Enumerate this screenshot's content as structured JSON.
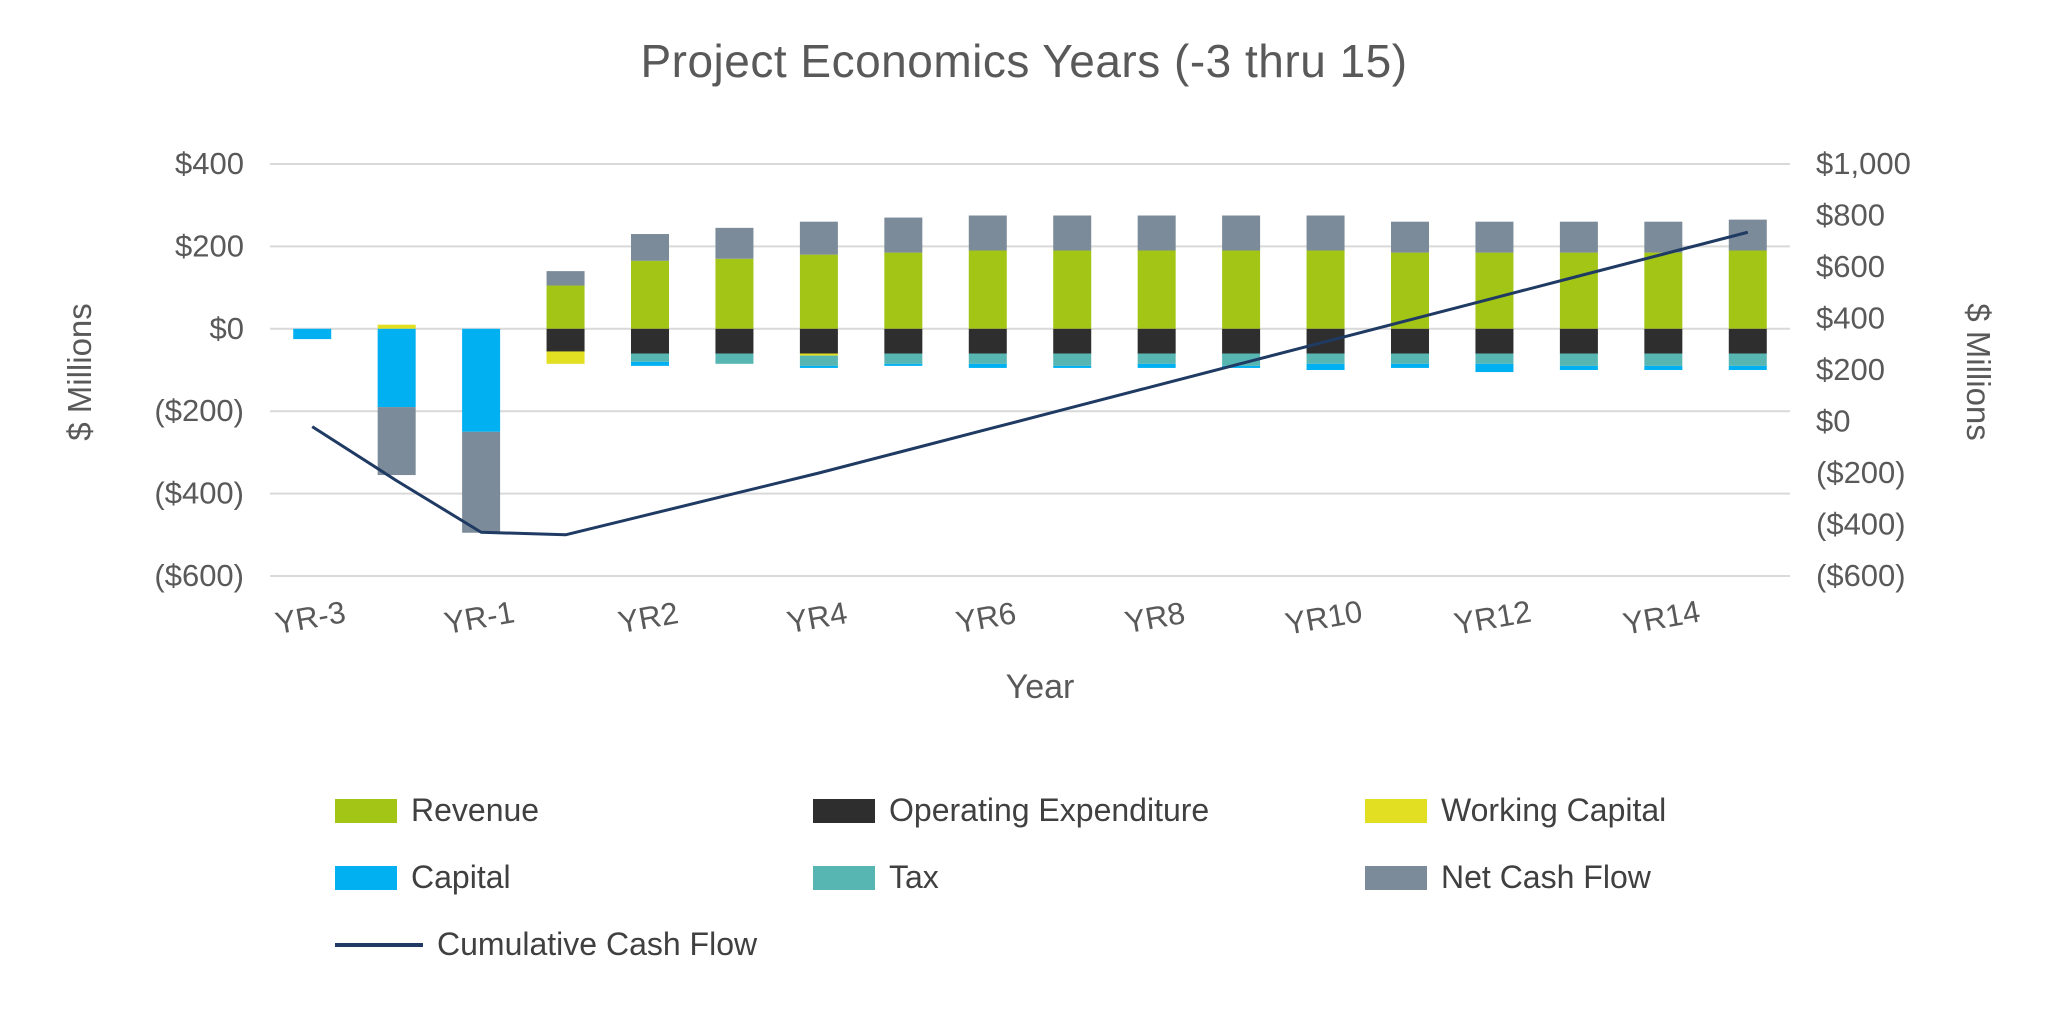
{
  "title": "Project Economics Years (-3 thru 15)",
  "axes": {
    "left": {
      "title": "$ Millions",
      "ticks": [
        "$400",
        "$200",
        "$0",
        "($200)",
        "($400)",
        "($600)"
      ],
      "tick_values": [
        400,
        200,
        0,
        -200,
        -400,
        -600
      ]
    },
    "right": {
      "title": "$ Millions",
      "ticks": [
        "$1,000",
        "$800",
        "$600",
        "$400",
        "$200",
        "$0",
        "($200)",
        "($400)",
        "($600)"
      ],
      "tick_values": [
        1000,
        800,
        600,
        400,
        200,
        0,
        -200,
        -400,
        -600
      ]
    },
    "x": {
      "title": "Year",
      "tick_labels": [
        "YR-3",
        "YR-1",
        "YR2",
        "YR4",
        "YR6",
        "YR8",
        "YR10",
        "YR12",
        "YR14"
      ]
    }
  },
  "colors": {
    "title_text": "#595959",
    "axis_text": "#595959",
    "legend_text": "#404040",
    "gridline": "#d9d9d9"
  },
  "chart_data": {
    "type": "bar",
    "subtype": "stacked-bars-with-cumulative-line",
    "title": "Project Economics Years (-3 thru 15)",
    "xlabel": "Year",
    "ylabel_left": "$ Millions",
    "ylabel_right": "$ Millions",
    "grid": true,
    "legend_position": "bottom",
    "left_axis": {
      "min": -600,
      "max": 400,
      "step": 200
    },
    "right_axis": {
      "min": -600,
      "max": 1000,
      "step": 200
    },
    "x_tick_every": 2,
    "categories": [
      "YR-3",
      "YR-2",
      "YR-1",
      "YR1",
      "YR2",
      "YR3",
      "YR4",
      "YR5",
      "YR6",
      "YR7",
      "YR8",
      "YR9",
      "YR10",
      "YR11",
      "YR12",
      "YR13",
      "YR14",
      "YR15"
    ],
    "series": [
      {
        "name": "Revenue",
        "color": "#a2c516",
        "values": [
          0,
          0,
          0,
          105,
          165,
          170,
          180,
          185,
          190,
          190,
          190,
          190,
          190,
          185,
          185,
          185,
          185,
          190
        ]
      },
      {
        "name": "Operating Expenditure",
        "color": "#2e2e2e",
        "values": [
          0,
          0,
          0,
          -55,
          -60,
          -60,
          -60,
          -60,
          -60,
          -60,
          -60,
          -60,
          -60,
          -60,
          -60,
          -60,
          -60,
          -60
        ]
      },
      {
        "name": "Working Capital",
        "color": "#e2de21",
        "values": [
          0,
          10,
          0,
          -30,
          0,
          0,
          -5,
          0,
          0,
          0,
          0,
          0,
          0,
          0,
          0,
          0,
          0,
          0
        ]
      },
      {
        "name": "Tax",
        "color": "#58b6b2",
        "values": [
          0,
          0,
          0,
          0,
          -20,
          -25,
          -25,
          -25,
          -25,
          -30,
          -25,
          -30,
          -25,
          -25,
          -25,
          -30,
          -30,
          -30
        ]
      },
      {
        "name": "Capital",
        "color": "#00b0f0",
        "values": [
          -25,
          -190,
          -250,
          0,
          -10,
          0,
          -5,
          -5,
          -10,
          -5,
          -10,
          -5,
          -15,
          -10,
          -20,
          -10,
          -10,
          -10
        ]
      },
      {
        "name": "Net Cash Flow",
        "color": "#7c8b99",
        "values": [
          0,
          -165,
          -245,
          35,
          65,
          75,
          80,
          85,
          85,
          85,
          85,
          85,
          85,
          75,
          75,
          75,
          75,
          75
        ]
      }
    ],
    "line_series": {
      "name": "Cumulative Cash Flow",
      "color": "#1f3a63",
      "axis": "right",
      "values": [
        -20,
        -230,
        -430,
        -440,
        -360,
        -280,
        -200,
        -115,
        -30,
        55,
        140,
        225,
        310,
        395,
        480,
        565,
        650,
        735
      ]
    }
  },
  "legend": {
    "items": [
      {
        "label": "Revenue",
        "color": "#a2c516",
        "type": "box"
      },
      {
        "label": "Operating Expenditure",
        "color": "#2e2e2e",
        "type": "box"
      },
      {
        "label": "Working Capital",
        "color": "#e2de21",
        "type": "box"
      },
      {
        "label": "Capital",
        "color": "#00b0f0",
        "type": "box"
      },
      {
        "label": "Tax",
        "color": "#58b6b2",
        "type": "box"
      },
      {
        "label": "Net Cash Flow",
        "color": "#7c8b99",
        "type": "box"
      },
      {
        "label": "Cumulative Cash Flow",
        "color": "#1f3a63",
        "type": "line"
      }
    ]
  }
}
